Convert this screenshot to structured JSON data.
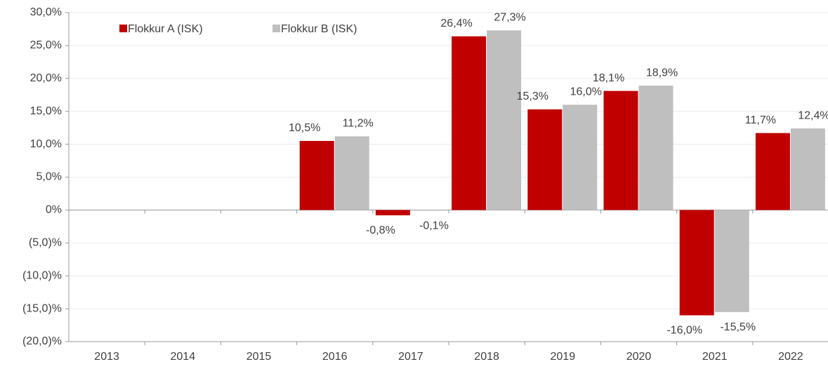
{
  "chart_data": {
    "type": "bar",
    "categories": [
      "2013",
      "2014",
      "2015",
      "2016",
      "2017",
      "2018",
      "2019",
      "2020",
      "2021",
      "2022"
    ],
    "series": [
      {
        "name": "Flokkur A (ISK)",
        "color": "#c00000",
        "values": [
          null,
          null,
          null,
          10.5,
          -0.8,
          26.4,
          15.3,
          18.1,
          -16.0,
          11.7
        ],
        "value_labels": [
          null,
          null,
          null,
          "10,5%",
          "-0,8%",
          "26,4%",
          "15,3%",
          "18,1%",
          "-16,0%",
          "11,7%"
        ]
      },
      {
        "name": "Flokkur B (ISK)",
        "color": "#bfbfbf",
        "values": [
          null,
          null,
          null,
          11.2,
          -0.1,
          27.3,
          16.0,
          18.9,
          -15.5,
          12.4
        ],
        "value_labels": [
          null,
          null,
          null,
          "11,2%",
          "-0,1%",
          "27,3%",
          "16,0%",
          "18,9%",
          "-15,5%",
          "12,4%"
        ]
      }
    ],
    "ylim": [
      -20,
      30
    ],
    "yticks": [
      {
        "value": -20,
        "label": "(20,0)%"
      },
      {
        "value": -15,
        "label": "(15,0)%"
      },
      {
        "value": -10,
        "label": "(10,0)%"
      },
      {
        "value": -5,
        "label": "(5,0)%"
      },
      {
        "value": 0,
        "label": "0%"
      },
      {
        "value": 5,
        "label": "5,0%"
      },
      {
        "value": 10,
        "label": "10,0%"
      },
      {
        "value": 15,
        "label": "15,0%"
      },
      {
        "value": 20,
        "label": "20,0%"
      },
      {
        "value": 25,
        "label": "25,0%"
      },
      {
        "value": 30,
        "label": "30,0%"
      }
    ],
    "grid": true,
    "legend": "top-left"
  }
}
